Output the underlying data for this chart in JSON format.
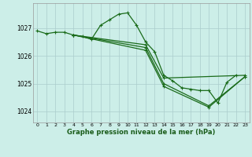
{
  "background_color": "#cceee8",
  "grid_color": "#aacccc",
  "line_color": "#1a6b1a",
  "xlabel": "Graphe pression niveau de la mer (hPa)",
  "xlim": [
    -0.5,
    23.5
  ],
  "ylim": [
    1023.6,
    1027.9
  ],
  "yticks": [
    1024,
    1025,
    1026,
    1027
  ],
  "xticks": [
    0,
    1,
    2,
    3,
    4,
    5,
    6,
    7,
    8,
    9,
    10,
    11,
    12,
    13,
    14,
    15,
    16,
    17,
    18,
    19,
    20,
    21,
    22,
    23
  ],
  "line1_x": [
    0,
    1,
    2,
    3,
    4,
    5,
    6,
    7,
    8,
    9,
    10,
    11,
    12,
    13,
    14,
    15,
    16,
    17,
    18,
    19,
    20,
    21,
    22
  ],
  "line1_y": [
    1026.9,
    1026.8,
    1026.85,
    1026.85,
    1026.75,
    1026.7,
    1026.6,
    1027.1,
    1027.3,
    1027.5,
    1027.55,
    1027.1,
    1026.5,
    1026.15,
    1025.3,
    1025.1,
    1024.85,
    1024.8,
    1024.75,
    1024.75,
    1024.3,
    1025.05,
    1025.3
  ],
  "line2_x": [
    4,
    12,
    14,
    23
  ],
  "line2_y": [
    1026.75,
    1026.4,
    1025.2,
    1025.3
  ],
  "line3_x": [
    4,
    12,
    14,
    19,
    23
  ],
  "line3_y": [
    1026.75,
    1026.3,
    1025.0,
    1024.2,
    1025.25
  ],
  "line4_x": [
    4,
    12,
    14,
    19,
    23
  ],
  "line4_y": [
    1026.75,
    1026.2,
    1024.9,
    1024.15,
    1025.25
  ],
  "figsize": [
    3.2,
    2.0
  ],
  "dpi": 100
}
